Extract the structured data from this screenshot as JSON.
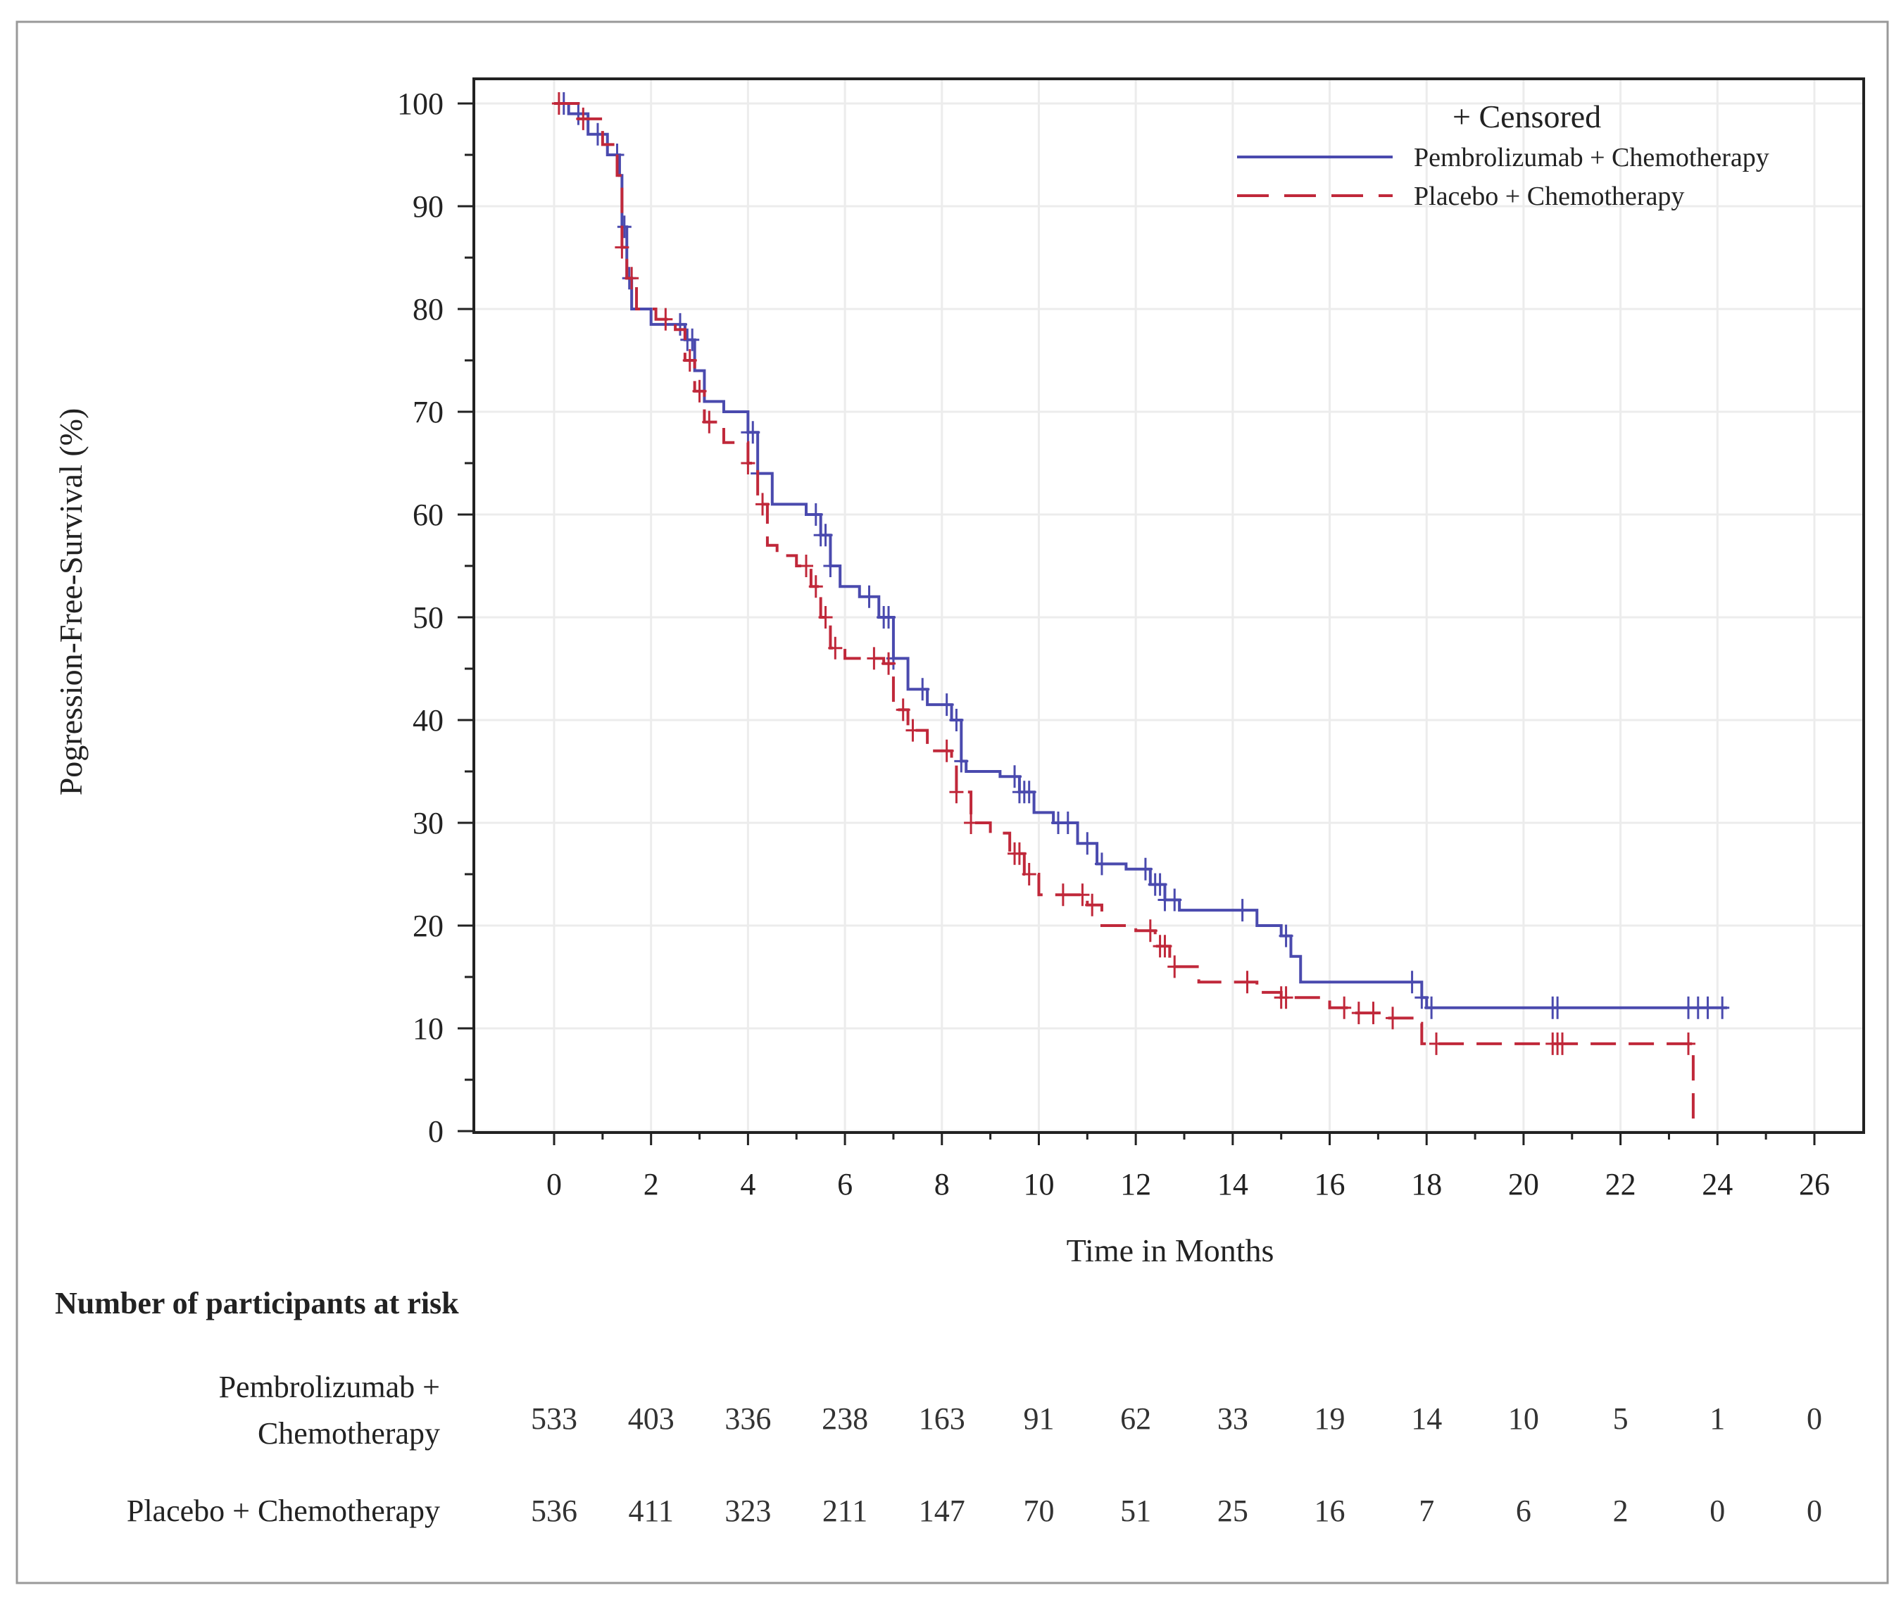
{
  "chart_data": {
    "type": "line",
    "subtype": "kaplan-meier",
    "xlabel": "Time in Months",
    "ylabel": "Pogression-Free-Survival (%)",
    "xlim": [
      0,
      26
    ],
    "ylim": [
      0,
      100
    ],
    "xticks": [
      0,
      2,
      4,
      6,
      8,
      10,
      12,
      14,
      16,
      18,
      20,
      22,
      24,
      26
    ],
    "yticks": [
      0,
      10,
      20,
      30,
      40,
      50,
      60,
      70,
      80,
      90,
      100
    ],
    "grid": true,
    "legend_placement": "top-right",
    "censored_label": "+ Censored",
    "series": [
      {
        "name": "Pembrolizumab + Chemotherapy",
        "color": "#4a4aae",
        "style": "solid",
        "steps": [
          [
            0,
            100
          ],
          [
            0.3,
            99
          ],
          [
            0.7,
            97
          ],
          [
            1.1,
            95
          ],
          [
            1.35,
            93
          ],
          [
            1.4,
            88
          ],
          [
            1.5,
            83
          ],
          [
            1.6,
            80
          ],
          [
            2,
            78.5
          ],
          [
            2.7,
            77
          ],
          [
            2.9,
            74
          ],
          [
            3.1,
            71
          ],
          [
            3.5,
            70
          ],
          [
            4,
            68
          ],
          [
            4.2,
            64
          ],
          [
            4.5,
            61
          ],
          [
            5.2,
            60
          ],
          [
            5.5,
            58
          ],
          [
            5.7,
            55
          ],
          [
            5.9,
            53
          ],
          [
            6.3,
            52
          ],
          [
            6.7,
            50
          ],
          [
            7,
            46
          ],
          [
            7.3,
            43
          ],
          [
            7.7,
            41.5
          ],
          [
            8.2,
            40
          ],
          [
            8.4,
            36
          ],
          [
            8.5,
            35
          ],
          [
            9.2,
            34.5
          ],
          [
            9.6,
            33
          ],
          [
            9.9,
            31
          ],
          [
            10.3,
            30
          ],
          [
            10.8,
            28
          ],
          [
            11.2,
            26
          ],
          [
            11.8,
            25.5
          ],
          [
            12.3,
            24
          ],
          [
            12.6,
            22.5
          ],
          [
            12.9,
            21.5
          ],
          [
            14.2,
            21.5
          ],
          [
            14.5,
            20
          ],
          [
            15,
            19
          ],
          [
            15.2,
            17
          ],
          [
            15.4,
            14.5
          ],
          [
            17.7,
            14.5
          ],
          [
            17.9,
            13
          ],
          [
            18,
            12
          ],
          [
            24.2,
            12
          ]
        ],
        "censored": [
          0.2,
          0.5,
          0.9,
          1.3,
          1.45,
          1.55,
          2.6,
          2.75,
          2.85,
          4,
          4.1,
          4.2,
          5.4,
          5.5,
          5.6,
          5.7,
          6.5,
          6.8,
          6.9,
          7,
          7.6,
          8.1,
          8.3,
          8.4,
          9.5,
          9.6,
          9.7,
          9.8,
          10.4,
          10.6,
          11,
          11.3,
          12.2,
          12.4,
          12.5,
          12.6,
          12.8,
          14.2,
          15.1,
          17.7,
          17.9,
          18.1,
          20.6,
          20.7,
          23.4,
          23.6,
          23.8,
          24.1
        ]
      },
      {
        "name": "Placebo + Chemotherapy",
        "color": "#c0283a",
        "style": "dashed",
        "steps": [
          [
            0,
            100
          ],
          [
            0.5,
            98.5
          ],
          [
            1,
            96
          ],
          [
            1.3,
            93
          ],
          [
            1.4,
            86
          ],
          [
            1.5,
            83
          ],
          [
            1.7,
            80
          ],
          [
            2.1,
            79
          ],
          [
            2.5,
            78
          ],
          [
            2.7,
            75
          ],
          [
            2.9,
            72
          ],
          [
            3.1,
            69
          ],
          [
            3.5,
            67
          ],
          [
            4,
            65
          ],
          [
            4.2,
            61
          ],
          [
            4.4,
            57
          ],
          [
            4.6,
            56
          ],
          [
            5,
            55
          ],
          [
            5.3,
            53
          ],
          [
            5.5,
            50
          ],
          [
            5.7,
            47
          ],
          [
            6,
            46
          ],
          [
            6.8,
            45.5
          ],
          [
            7,
            41
          ],
          [
            7.3,
            39
          ],
          [
            7.7,
            37
          ],
          [
            8.2,
            36
          ],
          [
            8.3,
            33
          ],
          [
            8.6,
            30
          ],
          [
            9,
            29
          ],
          [
            9.4,
            27
          ],
          [
            9.7,
            25
          ],
          [
            10,
            23
          ],
          [
            11,
            22
          ],
          [
            11.3,
            20
          ],
          [
            12,
            19.5
          ],
          [
            12.4,
            18
          ],
          [
            12.7,
            16
          ],
          [
            13.3,
            14.5
          ],
          [
            14.5,
            13.5
          ],
          [
            15,
            13
          ],
          [
            16,
            12
          ],
          [
            16.5,
            11.5
          ],
          [
            17.2,
            11
          ],
          [
            17.8,
            10.5
          ],
          [
            17.9,
            8.5
          ],
          [
            23.5,
            8.5
          ],
          [
            23.5,
            0
          ]
        ],
        "censored": [
          0.1,
          0.6,
          1.4,
          1.6,
          2.3,
          2.8,
          3,
          3.2,
          4,
          4.3,
          5.2,
          5.4,
          5.6,
          5.8,
          6.6,
          6.9,
          7.2,
          7.4,
          8.1,
          8.3,
          8.6,
          9.5,
          9.6,
          9.8,
          10.5,
          10.9,
          11.1,
          12.3,
          12.5,
          12.6,
          12.8,
          14.3,
          15,
          15.1,
          16.3,
          16.6,
          16.9,
          17.3,
          18.2,
          20.6,
          20.7,
          20.8,
          23.4
        ]
      }
    ],
    "at_risk": {
      "title": "Number of participants at risk",
      "times": [
        0,
        2,
        4,
        6,
        8,
        10,
        12,
        14,
        16,
        18,
        20,
        22,
        24,
        26
      ],
      "rows": [
        {
          "label_lines": [
            "Pembrolizumab +",
            "Chemotherapy"
          ],
          "values": [
            533,
            403,
            336,
            238,
            163,
            91,
            62,
            33,
            19,
            14,
            10,
            5,
            1,
            0
          ]
        },
        {
          "label_lines": [
            "Placebo + Chemotherapy"
          ],
          "values": [
            536,
            411,
            323,
            211,
            147,
            70,
            51,
            25,
            16,
            7,
            6,
            2,
            0,
            0
          ]
        }
      ]
    }
  }
}
